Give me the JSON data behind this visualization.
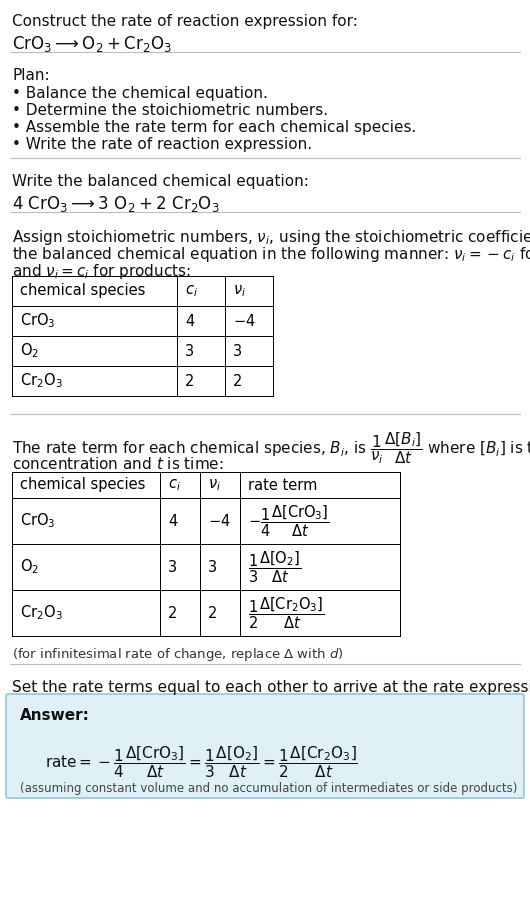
{
  "bg_color": "#ffffff",
  "text_color": "#000000",
  "line_color": "#aaaaaa",
  "table_line_color": "#888888",
  "answer_bg": "#dff0f7",
  "answer_border": "#99c4d8",
  "title_line1": "Construct the rate of reaction expression for:",
  "plan_header": "Plan:",
  "plan_items": [
    "• Balance the chemical equation.",
    "• Determine the stoichiometric numbers.",
    "• Assemble the rate term for each chemical species.",
    "• Write the rate of reaction expression."
  ],
  "balanced_header": "Write the balanced chemical equation:",
  "assign_line1": "Assign stoichiometric numbers, $\\nu_i$, using the stoichiometric coefficients, $c_i$, from",
  "assign_line2": "the balanced chemical equation in the following manner: $\\nu_i = -c_i$ for reactants",
  "assign_line3": "and $\\nu_i = c_i$ for products:",
  "rate_line1": "The rate term for each chemical species, $B_i$, is $\\dfrac{1}{\\nu_i}\\dfrac{\\Delta[B_i]}{\\Delta t}$ where $[B_i]$ is the amount",
  "rate_line2": "concentration and $t$ is time:",
  "infinitesimal_note": "(for infinitesimal rate of change, replace Δ with $d$)",
  "set_text": "Set the rate terms equal to each other to arrive at the rate expression:",
  "answer_label": "Answer:"
}
